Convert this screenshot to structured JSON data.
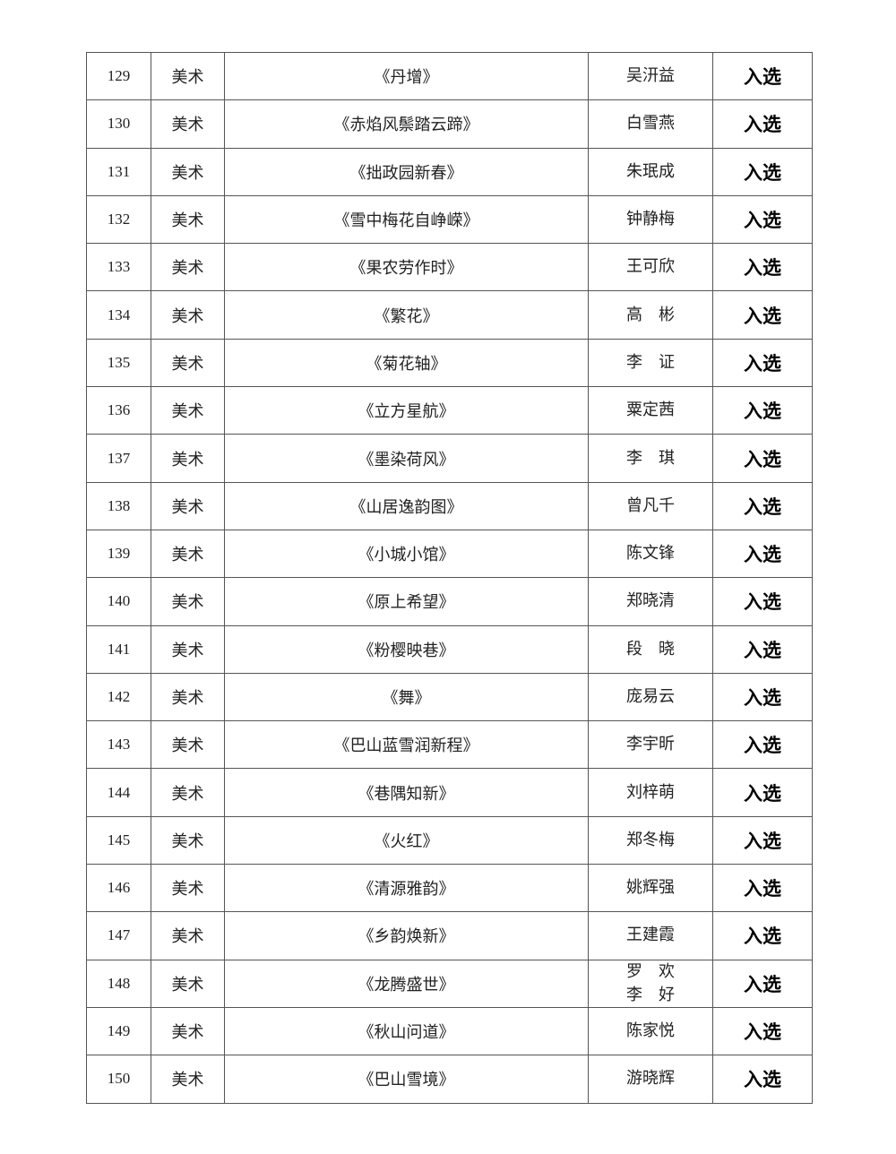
{
  "rows": [
    {
      "no": "129",
      "category": "美术",
      "title": "《丹增》",
      "authors": [
        "吴汧益"
      ],
      "status": "入选"
    },
    {
      "no": "130",
      "category": "美术",
      "title": "《赤焰风鬃踏云蹄》",
      "authors": [
        "白雪燕"
      ],
      "status": "入选"
    },
    {
      "no": "131",
      "category": "美术",
      "title": "《拙政园新春》",
      "authors": [
        "朱珉成"
      ],
      "status": "入选"
    },
    {
      "no": "132",
      "category": "美术",
      "title": "《雪中梅花自峥嵘》",
      "authors": [
        "钟静梅"
      ],
      "status": "入选"
    },
    {
      "no": "133",
      "category": "美术",
      "title": "《果农劳作时》",
      "authors": [
        "王可欣"
      ],
      "status": "入选"
    },
    {
      "no": "134",
      "category": "美术",
      "title": "《繁花》",
      "authors": [
        "高　彬"
      ],
      "status": "入选"
    },
    {
      "no": "135",
      "category": "美术",
      "title": "《菊花轴》",
      "authors": [
        "李　证"
      ],
      "status": "入选"
    },
    {
      "no": "136",
      "category": "美术",
      "title": "《立方星航》",
      "authors": [
        "粟定茜"
      ],
      "status": "入选"
    },
    {
      "no": "137",
      "category": "美术",
      "title": "《墨染荷风》",
      "authors": [
        "李　琪"
      ],
      "status": "入选"
    },
    {
      "no": "138",
      "category": "美术",
      "title": "《山居逸韵图》",
      "authors": [
        "曾凡千"
      ],
      "status": "入选"
    },
    {
      "no": "139",
      "category": "美术",
      "title": "《小城小馆》",
      "authors": [
        "陈文锋"
      ],
      "status": "入选"
    },
    {
      "no": "140",
      "category": "美术",
      "title": "《原上希望》",
      "authors": [
        "郑晓清"
      ],
      "status": "入选"
    },
    {
      "no": "141",
      "category": "美术",
      "title": "《粉樱映巷》",
      "authors": [
        "段　晓"
      ],
      "status": "入选"
    },
    {
      "no": "142",
      "category": "美术",
      "title": "《舞》",
      "authors": [
        "庞易云"
      ],
      "status": "入选"
    },
    {
      "no": "143",
      "category": "美术",
      "title": "《巴山蓝雪润新程》",
      "authors": [
        "李宇昕"
      ],
      "status": "入选"
    },
    {
      "no": "144",
      "category": "美术",
      "title": "《巷隅知新》",
      "authors": [
        "刘梓萌"
      ],
      "status": "入选"
    },
    {
      "no": "145",
      "category": "美术",
      "title": "《火红》",
      "authors": [
        "郑冬梅"
      ],
      "status": "入选"
    },
    {
      "no": "146",
      "category": "美术",
      "title": "《清源雅韵》",
      "authors": [
        "姚辉强"
      ],
      "status": "入选"
    },
    {
      "no": "147",
      "category": "美术",
      "title": "《乡韵焕新》",
      "authors": [
        "王建霞"
      ],
      "status": "入选"
    },
    {
      "no": "148",
      "category": "美术",
      "title": "《龙腾盛世》",
      "authors": [
        "罗　欢",
        "李　好"
      ],
      "status": "入选"
    },
    {
      "no": "149",
      "category": "美术",
      "title": "《秋山问道》",
      "authors": [
        "陈家悦"
      ],
      "status": "入选"
    },
    {
      "no": "150",
      "category": "美术",
      "title": "《巴山雪境》",
      "authors": [
        "游晓辉"
      ],
      "status": "入选"
    }
  ]
}
